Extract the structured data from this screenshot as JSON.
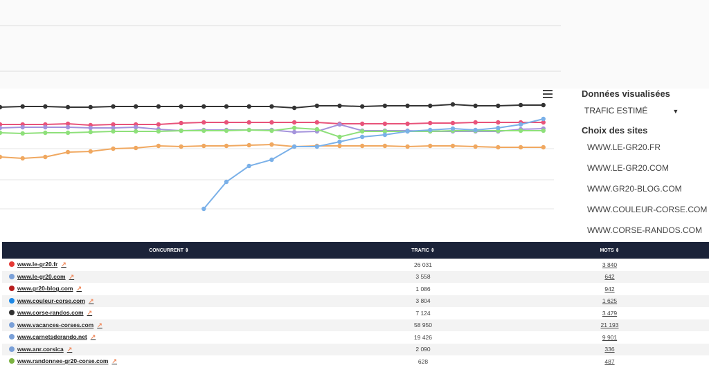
{
  "panel": {
    "data_label": "Données visualisées",
    "metric": "TRAFIC ESTIMÉ",
    "sites_label": "Choix des sites",
    "sites": [
      "WWW.LE-GR20.FR",
      "WWW.LE-GR20.COM",
      "WWW.GR20-BLOG.COM",
      "WWW.COULEUR-CORSE.COM",
      "WWW.CORSE-RANDOS.COM"
    ]
  },
  "chart_data": {
    "type": "line",
    "categories": [
      null,
      null,
      null,
      null,
      null,
      null,
      null,
      null,
      null,
      null,
      null,
      null,
      null,
      null,
      null,
      null,
      null,
      null,
      null,
      null,
      null,
      null,
      null,
      null,
      null
    ],
    "ylim": [
      0,
      200
    ],
    "series": [
      {
        "color": "#333333",
        "values": [
          175,
          176,
          176,
          175,
          175,
          176,
          176,
          176,
          176,
          176,
          176,
          176,
          176,
          174,
          177,
          177,
          176,
          177,
          177,
          177,
          179,
          177,
          177,
          178,
          178
        ]
      },
      {
        "color": "#e8537a",
        "values": [
          150,
          150,
          150,
          151,
          149,
          150,
          150,
          150,
          152,
          153,
          153,
          153,
          153,
          153,
          153,
          151,
          151,
          151,
          151,
          152,
          152,
          153,
          153,
          153,
          153
        ]
      },
      {
        "color": "#a493dc",
        "values": [
          145,
          146,
          146,
          146,
          145,
          145,
          146,
          143,
          141,
          142,
          142,
          142,
          142,
          139,
          140,
          150,
          141,
          141,
          141,
          140,
          140,
          140,
          140,
          143,
          144
        ]
      },
      {
        "color": "#8ee07a",
        "values": [
          138,
          137,
          138,
          138,
          139,
          140,
          140,
          140,
          141,
          141,
          141,
          142,
          141,
          145,
          143,
          132,
          140,
          140,
          140,
          140,
          141,
          141,
          141,
          141,
          141
        ]
      },
      {
        "color": "#f0a860",
        "values": [
          103,
          101,
          103,
          110,
          111,
          115,
          116,
          119,
          118,
          119,
          119,
          120,
          121,
          118,
          119,
          119,
          119,
          119,
          118,
          119,
          119,
          118,
          117,
          117,
          117
        ]
      },
      {
        "color": "#7ab0e8",
        "values": [
          null,
          null,
          null,
          null,
          null,
          null,
          null,
          null,
          null,
          28,
          67,
          90,
          99,
          118,
          118,
          125,
          132,
          135,
          140,
          142,
          144,
          142,
          145,
          150,
          158
        ]
      }
    ]
  },
  "table": {
    "headers": [
      "CONCURRENT",
      "TRAFIC",
      "MOTS"
    ],
    "rows": [
      [
        "www.le-gr20.fr",
        "26 031",
        "3 840"
      ],
      [
        "www.le-gr20.com",
        "3 558",
        "642"
      ],
      [
        "www.gr20-blog.com",
        "1 086",
        "942"
      ],
      [
        "www.couleur-corse.com",
        "3 804",
        "1 625"
      ],
      [
        "www.corse-randos.com",
        "7 124",
        "3 479"
      ],
      [
        "www.vacances-corses.com",
        "58 950",
        "21 193"
      ],
      [
        "www.carnetsderando.net",
        "19 426",
        "9 901"
      ],
      [
        "www.anr.corsica",
        "2 090",
        "336"
      ],
      [
        "www.randonnee-gr20-corse.com",
        "628",
        "487"
      ]
    ]
  }
}
